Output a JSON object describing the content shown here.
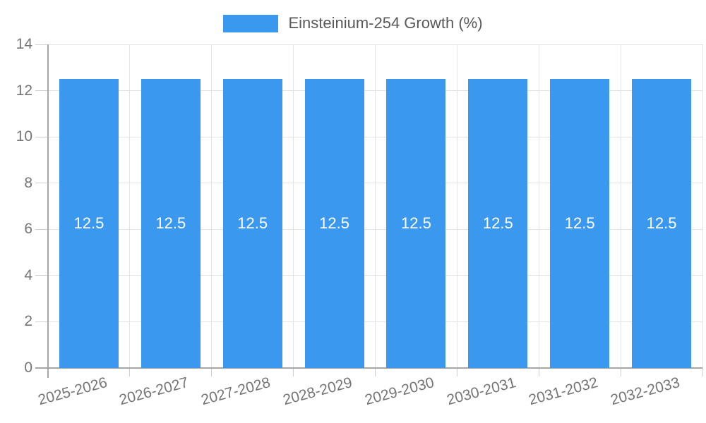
{
  "chart_data": {
    "type": "bar",
    "title": "",
    "legend": "Einsteinium-254 Growth (%)",
    "legend_position": "top",
    "categories": [
      "2025-2026",
      "2026-2027",
      "2027-2028",
      "2028-2029",
      "2029-2030",
      "2030-2031",
      "2031-2032",
      "2032-2033"
    ],
    "values": [
      12.5,
      12.5,
      12.5,
      12.5,
      12.5,
      12.5,
      12.5,
      12.5
    ],
    "bar_labels": [
      "12.5",
      "12.5",
      "12.5",
      "12.5",
      "12.5",
      "12.5",
      "12.5",
      "12.5"
    ],
    "xlabel": "",
    "ylabel": "",
    "ylim": [
      0,
      14
    ],
    "yticks": [
      0,
      2,
      4,
      6,
      8,
      10,
      12,
      14
    ],
    "grid": true,
    "bar_color": "#3A99EF",
    "bar_label_color": "#FFFFFF",
    "axis_text_color": "#757575",
    "legend_text_color": "#595959",
    "grid_color": "#E3E3E3",
    "tick_color": "#CFCFCF",
    "axis_line_color": "#A7A7A7",
    "background": "#FFFFFF"
  }
}
